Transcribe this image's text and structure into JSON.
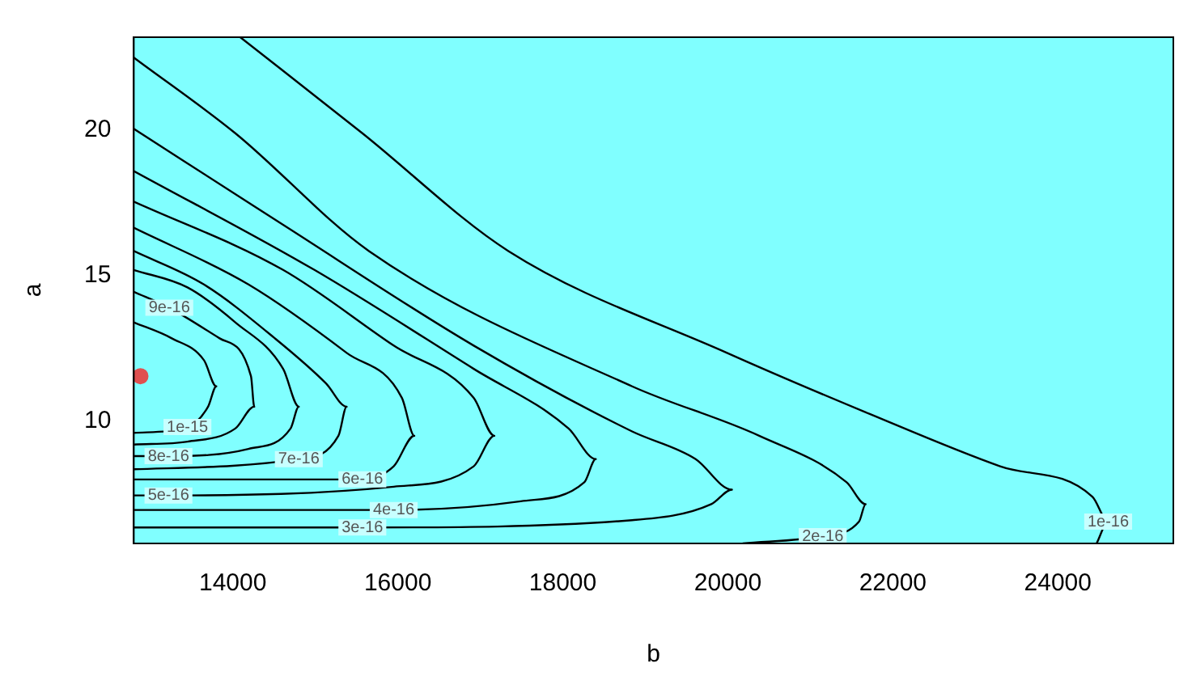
{
  "chart_data": {
    "type": "line",
    "xlabel": "b",
    "ylabel": "a",
    "xlim": [
      12800,
      25400
    ],
    "ylim": [
      5.8,
      23.2
    ],
    "xticks": [
      14000,
      16000,
      18000,
      20000,
      22000,
      24000
    ],
    "yticks": [
      10,
      15,
      20
    ],
    "grid": false,
    "legend": false,
    "series": [
      {
        "name": "1e-15",
        "color": "#000000",
        "x": [
          12800,
          13450,
          13700,
          13800,
          13650,
          13260,
          12800
        ],
        "values": [
          9.6,
          9.8,
          10.5,
          11.2,
          12.1,
          12.85,
          13.4
        ]
      },
      {
        "name": "9e-16",
        "color": "#000000",
        "x": [
          12800,
          13230,
          13840,
          14220,
          14260,
          14030,
          13450,
          12800
        ],
        "values": [
          14.45,
          13.9,
          12.85,
          11.55,
          10.5,
          9.75,
          9.3,
          9.2
        ]
      },
      {
        "name": "8e-16",
        "color": "#000000",
        "x": [
          12800,
          13220,
          14190,
          14700,
          14800,
          14610,
          14030,
          13450,
          12800
        ],
        "values": [
          8.8,
          8.8,
          9.05,
          9.75,
          10.5,
          11.8,
          13.4,
          14.6,
          15.2
        ]
      },
      {
        "name": "7e-16",
        "color": "#000000",
        "x": [
          12800,
          14800,
          15280,
          15380,
          15130,
          14510,
          13650,
          12800
        ],
        "values": [
          8.35,
          8.7,
          9.5,
          10.5,
          11.3,
          12.85,
          14.7,
          15.85
        ]
      },
      {
        "name": "6e-16",
        "color": "#000000",
        "x": [
          12800,
          15570,
          15950,
          16200,
          16050,
          15380,
          14190,
          12800
        ],
        "values": [
          8.0,
          8.0,
          8.45,
          9.5,
          10.8,
          12.35,
          14.7,
          16.65
        ]
      },
      {
        "name": "5e-16",
        "color": "#000000",
        "x": [
          12800,
          13220,
          15950,
          16920,
          17170,
          16920,
          15950,
          14610,
          12800
        ],
        "values": [
          7.45,
          7.45,
          7.75,
          8.45,
          9.5,
          10.8,
          12.6,
          15.2,
          17.55
        ]
      },
      {
        "name": "4e-16",
        "color": "#000000",
        "x": [
          12800,
          15950,
          17490,
          18260,
          18400,
          18070,
          16920,
          14990,
          12800
        ],
        "values": [
          6.95,
          6.95,
          7.25,
          7.9,
          8.7,
          9.75,
          11.8,
          15.2,
          18.6
        ]
      },
      {
        "name": "3e-16",
        "color": "#000000",
        "x": [
          12800,
          15570,
          18840,
          19800,
          20050,
          19610,
          18840,
          16920,
          14610,
          12800
        ],
        "values": [
          6.35,
          6.35,
          6.6,
          7.15,
          7.65,
          8.7,
          9.65,
          12.6,
          16.75,
          20.05
        ]
      },
      {
        "name": "2e-16",
        "color": "#000000",
        "x": [
          20180,
          21150,
          21590,
          21670,
          21440,
          20380,
          18840,
          15650,
          14030,
          12800
        ],
        "values": [
          5.8,
          6.05,
          6.55,
          7.15,
          7.9,
          9.5,
          11.2,
          15.85,
          19.9,
          22.5
        ]
      },
      {
        "name": "1e-16",
        "color": "#000000",
        "x": [
          24470,
          24610,
          24420,
          23300,
          21720,
          19990,
          17340,
          15570,
          14090
        ],
        "values": [
          5.8,
          6.55,
          7.4,
          8.45,
          10.25,
          12.35,
          15.85,
          19.9,
          23.2
        ]
      },
      {
        "type": "scatter",
        "color": "#e05050",
        "x": [
          12880
        ],
        "values": [
          11.55
        ]
      }
    ]
  }
}
